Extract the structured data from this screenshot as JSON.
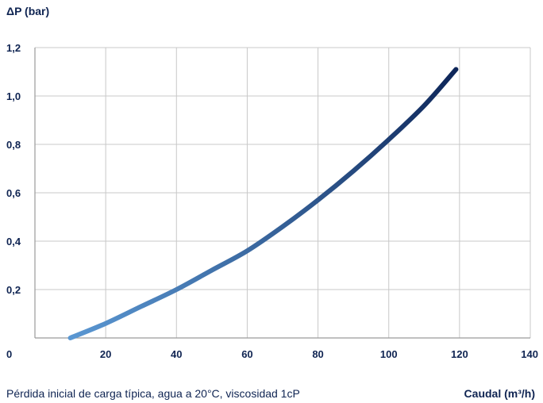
{
  "chart_data": {
    "type": "line",
    "ylabel": "ΔP (bar)",
    "xlabel": "Caudal (m³/h)",
    "caption": "Pérdida inicial de carga típica, agua a 20°C, viscosidad 1cP",
    "xlim": [
      0,
      140
    ],
    "ylim": [
      0,
      1.2
    ],
    "x_ticks": [
      "0",
      "20",
      "40",
      "60",
      "80",
      "100",
      "120",
      "140"
    ],
    "y_ticks": [
      "0,2",
      "0,4",
      "0,6",
      "0,8",
      "1,0",
      "1,2"
    ],
    "grid": true,
    "colors": {
      "start": "#5a97d2",
      "end": "#0d2558",
      "grid": "#c8c8c8",
      "text": "#0f2452"
    },
    "series": [
      {
        "x": [
          10,
          20,
          30,
          40,
          50,
          60,
          70,
          80,
          90,
          100,
          110,
          119
        ],
        "values": [
          0.0,
          0.06,
          0.13,
          0.2,
          0.28,
          0.36,
          0.46,
          0.57,
          0.69,
          0.82,
          0.96,
          1.11
        ]
      }
    ]
  }
}
